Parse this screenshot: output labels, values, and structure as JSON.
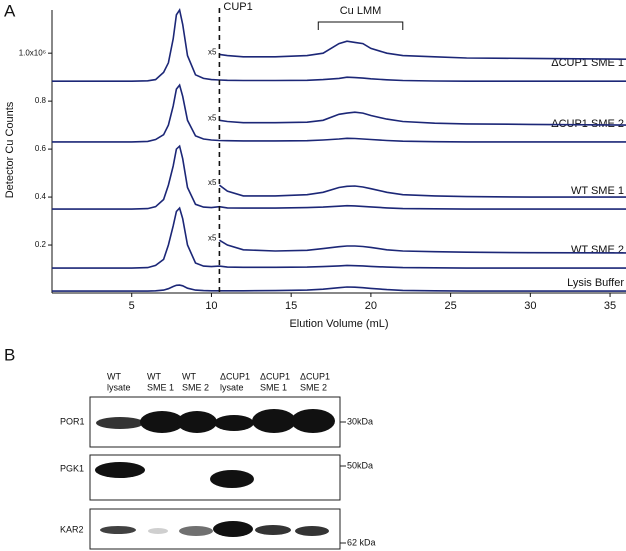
{
  "panels": {
    "a": "A",
    "b": "B"
  },
  "chart_data": {
    "type": "line",
    "ylabel": "Detector Cu Counts",
    "xlabel": "Elution Volume (mL)",
    "xlim": [
      0,
      36
    ],
    "ylim": [
      0,
      1.18
    ],
    "xticks": [
      5,
      10,
      15,
      20,
      25,
      30,
      35
    ],
    "yticks": [
      0.2,
      0.4,
      0.6,
      0.8,
      {
        "value": 1.0,
        "label": "1.0x10⁶"
      }
    ],
    "x": [
      0,
      2,
      4,
      5,
      6,
      6.5,
      7,
      7.3,
      7.6,
      7.8,
      8,
      8.2,
      8.5,
      9,
      9.5,
      10,
      10.5,
      11,
      12,
      14,
      16,
      17,
      18,
      18.5,
      19,
      19.5,
      20,
      21,
      22,
      24,
      26,
      30,
      36
    ],
    "series": [
      {
        "name": "ΔCUP1 SME 1",
        "color": "#1c2777",
        "values": [
          0.883,
          0.883,
          0.883,
          0.883,
          0.885,
          0.89,
          0.92,
          0.96,
          1.06,
          1.16,
          1.18,
          1.12,
          0.99,
          0.91,
          0.895,
          0.89,
          0.888,
          0.887,
          0.886,
          0.886,
          0.887,
          0.89,
          0.895,
          0.9,
          0.898,
          0.896,
          0.893,
          0.889,
          0.886,
          0.884,
          0.883,
          0.883,
          0.883
        ]
      },
      {
        "label": "x5",
        "color": "#1c2777",
        "values": [
          null,
          null,
          null,
          null,
          null,
          null,
          null,
          null,
          null,
          null,
          null,
          null,
          null,
          null,
          null,
          null,
          0.995,
          0.99,
          0.985,
          0.985,
          0.99,
          1.0,
          1.04,
          1.05,
          1.045,
          1.04,
          1.02,
          1.0,
          0.99,
          0.985,
          0.98,
          0.978,
          0.975
        ]
      },
      {
        "name": "ΔCUP1 SME 2",
        "color": "#1c2777",
        "values": [
          0.63,
          0.63,
          0.63,
          0.63,
          0.632,
          0.64,
          0.66,
          0.7,
          0.78,
          0.85,
          0.867,
          0.82,
          0.72,
          0.655,
          0.642,
          0.638,
          0.636,
          0.635,
          0.634,
          0.634,
          0.635,
          0.638,
          0.642,
          0.645,
          0.644,
          0.642,
          0.64,
          0.636,
          0.633,
          0.631,
          0.63,
          0.63,
          0.63
        ]
      },
      {
        "label": "x5",
        "color": "#1c2777",
        "values": [
          null,
          null,
          null,
          null,
          null,
          null,
          null,
          null,
          null,
          null,
          null,
          null,
          null,
          null,
          null,
          null,
          0.72,
          0.715,
          0.71,
          0.71,
          0.712,
          0.72,
          0.745,
          0.75,
          0.754,
          0.75,
          0.74,
          0.725,
          0.715,
          0.708,
          0.705,
          0.703,
          0.7
        ]
      },
      {
        "name": "WT SME 1",
        "color": "#1c2777",
        "values": [
          0.35,
          0.35,
          0.35,
          0.35,
          0.352,
          0.36,
          0.39,
          0.45,
          0.53,
          0.6,
          0.6125,
          0.56,
          0.44,
          0.37,
          0.358,
          0.356,
          0.36,
          0.355,
          0.354,
          0.354,
          0.356,
          0.358,
          0.362,
          0.364,
          0.363,
          0.361,
          0.359,
          0.355,
          0.352,
          0.351,
          0.35,
          0.35,
          0.35
        ]
      },
      {
        "label": "x5",
        "color": "#1c2777",
        "values": [
          null,
          null,
          null,
          null,
          null,
          null,
          null,
          null,
          null,
          null,
          null,
          null,
          null,
          null,
          null,
          null,
          0.45,
          0.425,
          0.405,
          0.405,
          0.41,
          0.42,
          0.44,
          0.445,
          0.446,
          0.442,
          0.435,
          0.42,
          0.41,
          0.405,
          0.402,
          0.4,
          0.4
        ]
      },
      {
        "name": "WT SME 2",
        "color": "#1c2777",
        "values": [
          0.104,
          0.104,
          0.104,
          0.104,
          0.106,
          0.115,
          0.14,
          0.2,
          0.28,
          0.34,
          0.354,
          0.31,
          0.2,
          0.125,
          0.112,
          0.11,
          0.112,
          0.108,
          0.107,
          0.107,
          0.108,
          0.11,
          0.113,
          0.115,
          0.114,
          0.113,
          0.111,
          0.108,
          0.106,
          0.105,
          0.104,
          0.104,
          0.104
        ]
      },
      {
        "label": "x5",
        "color": "#1c2777",
        "values": [
          null,
          null,
          null,
          null,
          null,
          null,
          null,
          null,
          null,
          null,
          null,
          null,
          null,
          null,
          null,
          null,
          0.22,
          0.2,
          0.18,
          0.175,
          0.178,
          0.185,
          0.193,
          0.196,
          0.196,
          0.194,
          0.19,
          0.18,
          0.175,
          0.172,
          0.17,
          0.168,
          0.167
        ]
      },
      {
        "name": "Lysis Buffer",
        "color": "#1c2777",
        "values": [
          0.008,
          0.008,
          0.008,
          0.008,
          0.008,
          0.009,
          0.012,
          0.018,
          0.027,
          0.032,
          0.033,
          0.03,
          0.02,
          0.012,
          0.01,
          0.009,
          0.009,
          0.009,
          0.009,
          0.01,
          0.012,
          0.016,
          0.022,
          0.025,
          0.024,
          0.022,
          0.019,
          0.014,
          0.011,
          0.009,
          0.008,
          0.008,
          0.008
        ]
      }
    ],
    "annotations": [
      {
        "text": "CUP1",
        "x": 10.5
      },
      {
        "text": "Cu LMM",
        "x": [
          16.7,
          22
        ]
      }
    ]
  },
  "blot": {
    "lanes": [
      [
        "WT",
        "lysate"
      ],
      [
        "WT",
        "SME 1"
      ],
      [
        "WT",
        "SME 2"
      ],
      [
        "ΔCUP1",
        "lysate"
      ],
      [
        "ΔCUP1",
        "SME 1"
      ],
      [
        "ΔCUP1",
        "SME 2"
      ]
    ],
    "rows": [
      {
        "protein": "POR1",
        "marker": "30kDa"
      },
      {
        "protein": "PGK1",
        "marker": "50kDa"
      },
      {
        "protein": "KAR2",
        "marker": "62 kDa"
      }
    ]
  }
}
